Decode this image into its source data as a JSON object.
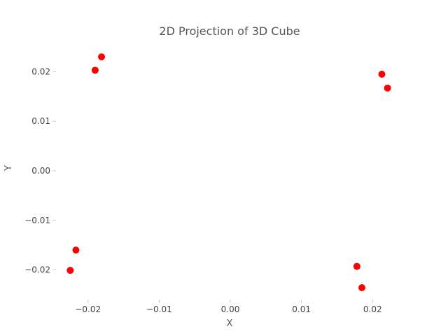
{
  "chart_data": {
    "type": "scatter",
    "title": "2D Projection of 3D Cube",
    "xlabel": "X",
    "ylabel": "Y",
    "xlim": [
      -0.0245,
      0.0245
    ],
    "ylim": [
      -0.026,
      0.026
    ],
    "xticks": [
      -0.02,
      -0.01,
      0.0,
      0.01,
      0.02
    ],
    "yticks": [
      -0.02,
      -0.01,
      0.0,
      0.01,
      0.02
    ],
    "xtick_labels": [
      "−0.02",
      "−0.01",
      "0.00",
      "0.01",
      "0.02"
    ],
    "ytick_labels": [
      "−0.02",
      "−0.01",
      "0.00",
      "0.01",
      "0.02"
    ],
    "grid": false,
    "point_color": "#ff0000",
    "points": [
      {
        "x": -0.0181,
        "y": 0.023
      },
      {
        "x": -0.019,
        "y": 0.0203
      },
      {
        "x": 0.0213,
        "y": 0.0195
      },
      {
        "x": 0.0221,
        "y": 0.0167
      },
      {
        "x": -0.0217,
        "y": -0.016
      },
      {
        "x": -0.0225,
        "y": -0.0201
      },
      {
        "x": 0.0178,
        "y": -0.0193
      },
      {
        "x": 0.0185,
        "y": -0.0236
      }
    ]
  }
}
